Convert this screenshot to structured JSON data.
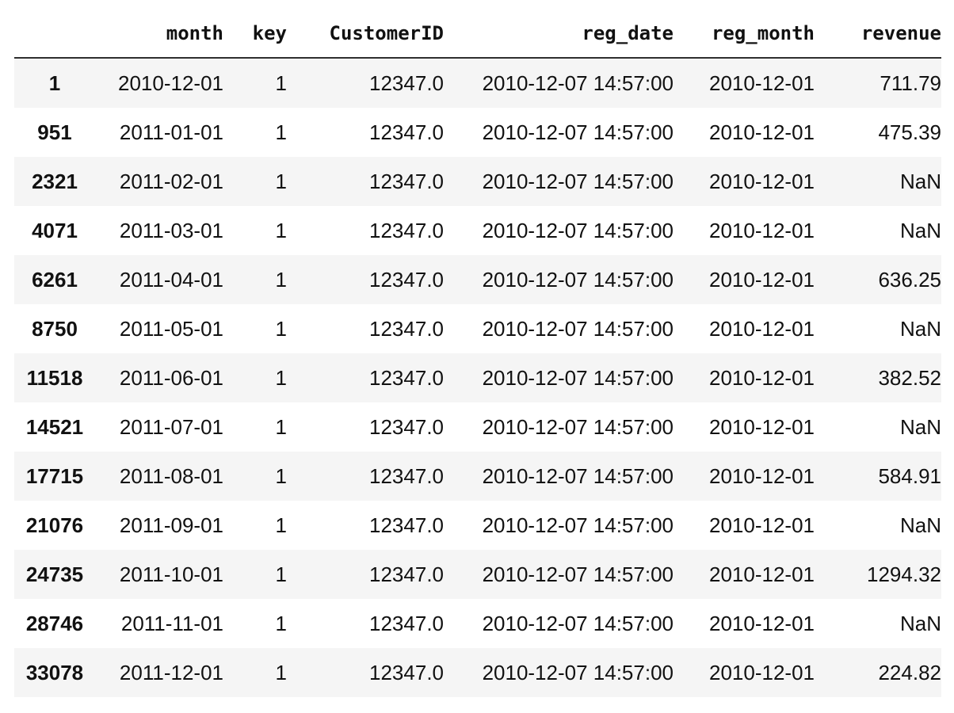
{
  "table": {
    "columns": [
      "",
      "month",
      "key",
      "CustomerID",
      "reg_date",
      "reg_month",
      "revenue"
    ],
    "rows": [
      {
        "index": "1",
        "month": "2010-12-01",
        "key": "1",
        "CustomerID": "12347.0",
        "reg_date": "2010-12-07 14:57:00",
        "reg_month": "2010-12-01",
        "revenue": "711.79"
      },
      {
        "index": "951",
        "month": "2011-01-01",
        "key": "1",
        "CustomerID": "12347.0",
        "reg_date": "2010-12-07 14:57:00",
        "reg_month": "2010-12-01",
        "revenue": "475.39"
      },
      {
        "index": "2321",
        "month": "2011-02-01",
        "key": "1",
        "CustomerID": "12347.0",
        "reg_date": "2010-12-07 14:57:00",
        "reg_month": "2010-12-01",
        "revenue": "NaN"
      },
      {
        "index": "4071",
        "month": "2011-03-01",
        "key": "1",
        "CustomerID": "12347.0",
        "reg_date": "2010-12-07 14:57:00",
        "reg_month": "2010-12-01",
        "revenue": "NaN"
      },
      {
        "index": "6261",
        "month": "2011-04-01",
        "key": "1",
        "CustomerID": "12347.0",
        "reg_date": "2010-12-07 14:57:00",
        "reg_month": "2010-12-01",
        "revenue": "636.25"
      },
      {
        "index": "8750",
        "month": "2011-05-01",
        "key": "1",
        "CustomerID": "12347.0",
        "reg_date": "2010-12-07 14:57:00",
        "reg_month": "2010-12-01",
        "revenue": "NaN"
      },
      {
        "index": "11518",
        "month": "2011-06-01",
        "key": "1",
        "CustomerID": "12347.0",
        "reg_date": "2010-12-07 14:57:00",
        "reg_month": "2010-12-01",
        "revenue": "382.52"
      },
      {
        "index": "14521",
        "month": "2011-07-01",
        "key": "1",
        "CustomerID": "12347.0",
        "reg_date": "2010-12-07 14:57:00",
        "reg_month": "2010-12-01",
        "revenue": "NaN"
      },
      {
        "index": "17715",
        "month": "2011-08-01",
        "key": "1",
        "CustomerID": "12347.0",
        "reg_date": "2010-12-07 14:57:00",
        "reg_month": "2010-12-01",
        "revenue": "584.91"
      },
      {
        "index": "21076",
        "month": "2011-09-01",
        "key": "1",
        "CustomerID": "12347.0",
        "reg_date": "2010-12-07 14:57:00",
        "reg_month": "2010-12-01",
        "revenue": "NaN"
      },
      {
        "index": "24735",
        "month": "2011-10-01",
        "key": "1",
        "CustomerID": "12347.0",
        "reg_date": "2010-12-07 14:57:00",
        "reg_month": "2010-12-01",
        "revenue": "1294.32"
      },
      {
        "index": "28746",
        "month": "2011-11-01",
        "key": "1",
        "CustomerID": "12347.0",
        "reg_date": "2010-12-07 14:57:00",
        "reg_month": "2010-12-01",
        "revenue": "NaN"
      },
      {
        "index": "33078",
        "month": "2011-12-01",
        "key": "1",
        "CustomerID": "12347.0",
        "reg_date": "2010-12-07 14:57:00",
        "reg_month": "2010-12-01",
        "revenue": "224.82"
      }
    ]
  },
  "colors": {
    "stripe": "#f5f5f5",
    "header_rule": "#2f2f2f",
    "text": "#111111"
  }
}
